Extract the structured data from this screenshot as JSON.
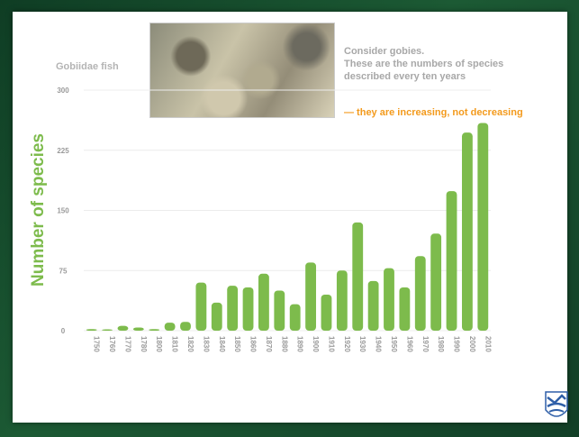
{
  "slide": {
    "series_label": "Gobiidae fish",
    "note_lines": [
      "Consider gobies.",
      "These are the numbers of species",
      "described every ten years"
    ],
    "highlight": "— they are increasing, not decreasing",
    "photo_icon": "goby-fish-photo",
    "logo_icon": "institution-logo-icon"
  },
  "colors": {
    "bar": "#7dbb4c",
    "ylabel": "#7dbb4c",
    "highlight": "#f39a1c",
    "axis_text": "#9a9a9a"
  },
  "chart_data": {
    "type": "bar",
    "title": "",
    "ylabel": "Number of species",
    "xlabel": "",
    "ylim": [
      0,
      300
    ],
    "yticks": [
      0,
      75,
      150,
      225,
      300
    ],
    "grid": true,
    "categories": [
      "1750",
      "1760",
      "1770",
      "1780",
      "1800",
      "1810",
      "1820",
      "1830",
      "1840",
      "1850",
      "1860",
      "1870",
      "1880",
      "1890",
      "1900",
      "1910",
      "1920",
      "1930",
      "1940",
      "1950",
      "1960",
      "1970",
      "1980",
      "1990",
      "2000",
      "2010"
    ],
    "values": [
      2,
      1,
      6,
      4,
      2,
      10,
      11,
      60,
      35,
      56,
      54,
      71,
      50,
      33,
      85,
      45,
      75,
      135,
      62,
      78,
      54,
      93,
      121,
      174,
      247,
      259
    ]
  }
}
